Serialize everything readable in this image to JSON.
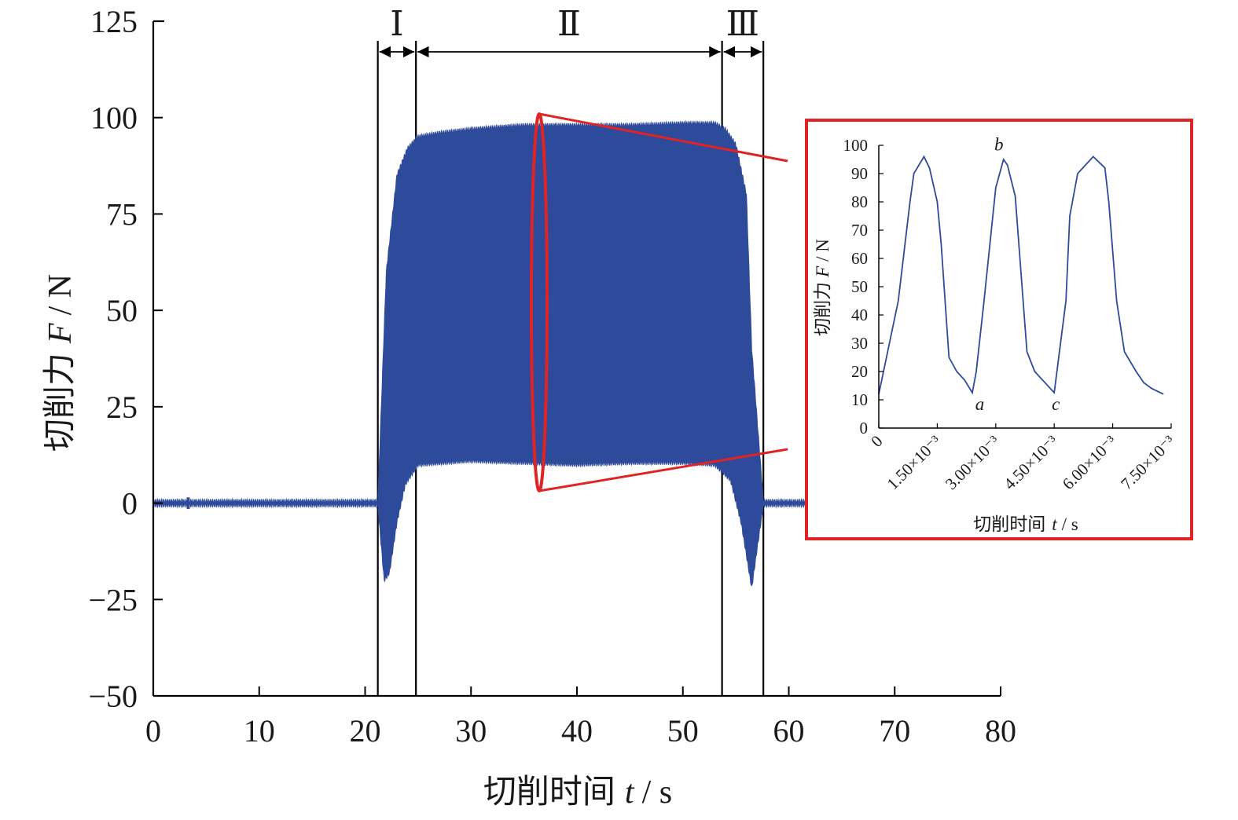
{
  "chart_data": [
    {
      "type": "line",
      "xlabel": {
        "prefix": "切削时间",
        "var": "t",
        "unit": "/ s"
      },
      "ylabel": {
        "prefix": "切削力",
        "var": "F",
        "unit": "/ N"
      },
      "xlim": [
        0,
        80
      ],
      "ylim": [
        -50,
        125
      ],
      "xticks": [
        "0",
        "10",
        "20",
        "30",
        "40",
        "50",
        "60",
        "70",
        "80"
      ],
      "yticks": [
        "−50",
        "−25",
        "0",
        "25",
        "50",
        "75",
        "100",
        "125"
      ],
      "xtick_values": [
        0,
        10,
        20,
        30,
        40,
        50,
        60,
        70,
        80
      ],
      "ytick_values": [
        -50,
        -25,
        0,
        25,
        50,
        75,
        100,
        125
      ],
      "color": "#2e4a9a",
      "stages": [
        {
          "label": "Ⅰ",
          "x_start": 21.2,
          "x_end": 24.8
        },
        {
          "label": "Ⅱ",
          "x_start": 24.8,
          "x_end": 53.7
        },
        {
          "label": "Ⅲ",
          "x_start": 53.7,
          "x_end": 57.6
        }
      ],
      "envelope": {
        "upper": [
          [
            0,
            0.5
          ],
          [
            21.2,
            0.5
          ],
          [
            22,
            60
          ],
          [
            23,
            85
          ],
          [
            24,
            92
          ],
          [
            25,
            95
          ],
          [
            27,
            96
          ],
          [
            30,
            97
          ],
          [
            35,
            98
          ],
          [
            40,
            98
          ],
          [
            45,
            98
          ],
          [
            50,
            98.5
          ],
          [
            53,
            98.5
          ],
          [
            54,
            97
          ],
          [
            55,
            93
          ],
          [
            56,
            80
          ],
          [
            56.5,
            40
          ],
          [
            57.6,
            0.5
          ],
          [
            80,
            0.5
          ]
        ],
        "lower": [
          [
            0,
            -0.5
          ],
          [
            21.2,
            -0.5
          ],
          [
            21.8,
            -20
          ],
          [
            22.3,
            -18
          ],
          [
            23,
            -5
          ],
          [
            23.8,
            5
          ],
          [
            25,
            10
          ],
          [
            30,
            11
          ],
          [
            35,
            10.5
          ],
          [
            40,
            10
          ],
          [
            45,
            10.5
          ],
          [
            50,
            10.5
          ],
          [
            53,
            10
          ],
          [
            54.5,
            6
          ],
          [
            55.5,
            -5
          ],
          [
            56.5,
            -22
          ],
          [
            57,
            -12
          ],
          [
            57.6,
            -0.5
          ],
          [
            80,
            -0.5
          ]
        ]
      },
      "spikes": [
        {
          "x": 3.3,
          "amplitude": 1.5
        },
        {
          "x": 68.8,
          "amplitude": 3
        }
      ]
    },
    {
      "type": "line",
      "xlabel": {
        "prefix": "切削时间",
        "var": "t",
        "unit": "/ s"
      },
      "ylabel": {
        "prefix": "切削力",
        "var": "F",
        "unit": "/ N"
      },
      "xlim": [
        0,
        0.0075
      ],
      "ylim": [
        0,
        100
      ],
      "xticks": [
        "0",
        "1.50×10⁻³",
        "3.00×10⁻³",
        "4.50×10⁻³",
        "6.00×10⁻³",
        "7.50×10⁻³"
      ],
      "xtick_values": [
        0,
        0.0015,
        0.003,
        0.0045,
        0.006,
        0.0075
      ],
      "yticks": [
        "0",
        "10",
        "20",
        "30",
        "40",
        "50",
        "60",
        "70",
        "80",
        "90",
        "100"
      ],
      "ytick_values": [
        0,
        10,
        20,
        30,
        40,
        50,
        60,
        70,
        80,
        90,
        100
      ],
      "color": "#2e4a9a",
      "frame_color": "#e02424",
      "x": [
        0,
        0.0005,
        0.0008,
        0.0009,
        0.00116,
        0.0013,
        0.0015,
        0.0016,
        0.0018,
        0.002,
        0.0022,
        0.0024,
        0.0025,
        0.0027,
        0.003,
        0.0032,
        0.0033,
        0.0035,
        0.0038,
        0.004,
        0.0042,
        0.0045,
        0.0048,
        0.0049,
        0.0051,
        0.0055,
        0.0058,
        0.0059,
        0.0061,
        0.0063,
        0.0066,
        0.0068,
        0.007,
        0.0073
      ],
      "y": [
        12,
        45,
        80,
        90,
        96,
        92,
        80,
        65,
        25,
        20,
        17,
        12.5,
        20,
        45,
        85,
        95,
        93,
        82,
        27,
        20,
        17,
        12.5,
        45,
        75,
        90,
        96,
        92,
        80,
        45,
        27,
        20,
        16,
        14,
        12
      ],
      "point_labels": [
        {
          "text": "b",
          "x": 0.0032,
          "y": 96
        },
        {
          "text": "a",
          "x": 0.00255,
          "y": 12.5
        },
        {
          "text": "c",
          "x": 0.0045,
          "y": 12.5
        }
      ]
    }
  ]
}
